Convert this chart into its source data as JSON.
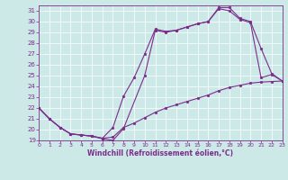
{
  "xlabel": "Windchill (Refroidissement éolien,°C)",
  "bg_color": "#cce9e8",
  "line_color": "#7b2d8b",
  "xlim": [
    0,
    23
  ],
  "ylim": [
    19,
    31.5
  ],
  "yticks": [
    19,
    20,
    21,
    22,
    23,
    24,
    25,
    26,
    27,
    28,
    29,
    30,
    31
  ],
  "xticks": [
    0,
    1,
    2,
    3,
    4,
    5,
    6,
    7,
    8,
    9,
    10,
    11,
    12,
    13,
    14,
    15,
    16,
    17,
    18,
    19,
    20,
    21,
    22,
    23
  ],
  "curve1_x": [
    0,
    1,
    2,
    3,
    4,
    5,
    6,
    7,
    8,
    10,
    11,
    12,
    13,
    14,
    15,
    16,
    17,
    18,
    19,
    20,
    21,
    22,
    23
  ],
  "curve1_y": [
    22.0,
    21.0,
    20.2,
    19.6,
    19.5,
    19.4,
    19.15,
    19.0,
    20.1,
    25.0,
    29.2,
    29.0,
    29.2,
    29.5,
    29.8,
    30.0,
    31.3,
    31.3,
    30.3,
    30.0,
    27.5,
    25.2,
    24.5
  ],
  "curve2_x": [
    0,
    1,
    2,
    3,
    4,
    5,
    6,
    7,
    8,
    9,
    10,
    11,
    12,
    13,
    14,
    15,
    16,
    17,
    18,
    19,
    20,
    21,
    22,
    23
  ],
  "curve2_y": [
    22.0,
    21.0,
    20.2,
    19.6,
    19.5,
    19.4,
    19.2,
    20.2,
    23.1,
    24.8,
    27.0,
    29.3,
    29.1,
    29.2,
    29.5,
    29.8,
    30.0,
    31.2,
    31.0,
    30.2,
    29.9,
    24.8,
    25.1,
    24.5
  ],
  "curve3_x": [
    0,
    1,
    2,
    3,
    4,
    5,
    6,
    7,
    8,
    9,
    10,
    11,
    12,
    13,
    14,
    15,
    16,
    17,
    18,
    19,
    20,
    21,
    22,
    23
  ],
  "curve3_y": [
    22.0,
    21.0,
    20.2,
    19.6,
    19.5,
    19.4,
    19.2,
    19.3,
    20.2,
    20.6,
    21.1,
    21.6,
    22.0,
    22.3,
    22.6,
    22.9,
    23.2,
    23.6,
    23.9,
    24.1,
    24.3,
    24.4,
    24.45,
    24.5
  ]
}
